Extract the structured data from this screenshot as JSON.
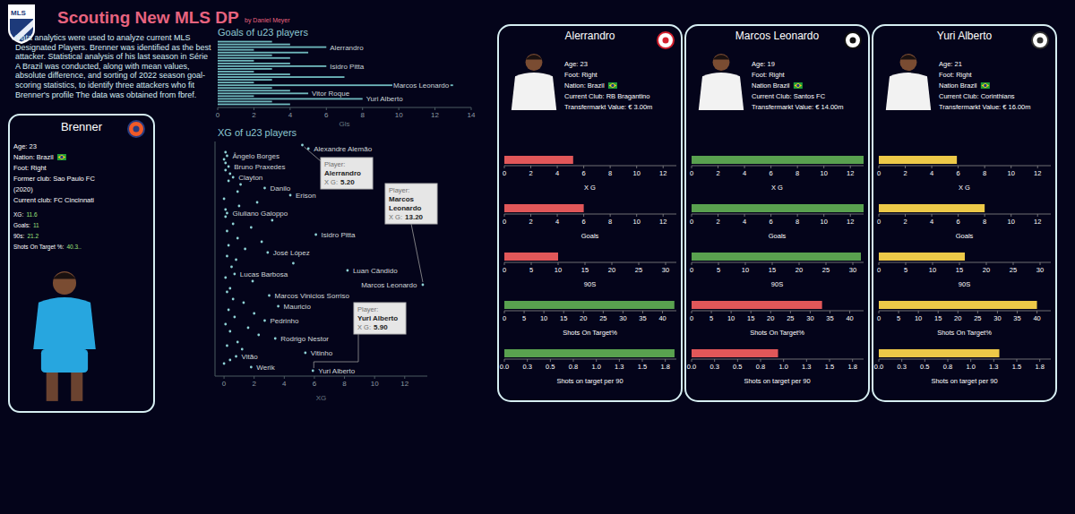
{
  "header": {
    "logo_text": "MLS",
    "title": "Scouting New MLS DP",
    "byline": "by Daniel Meyer",
    "description": "Data analytics were used to analyze current MLS Designated Players. Brenner was identified as the best attacker. Statistical analysis of his last season in Série A Brazil was conducted, along with mean values, absolute difference, and sorting of 2022 season goal-scoring statistics, to identify three attackers who fit Brenner's profile The data was obtained from fbref."
  },
  "brenner": {
    "name": "Brenner",
    "info": [
      "Age: 23",
      "Nation: Brazil",
      "Foot: Right",
      "Former club: Sao Paulo FC",
      "(2020)",
      "Current club: FC Cincinnati"
    ],
    "stats": [
      {
        "label": "XG:",
        "value": "11.6"
      },
      {
        "label": "Goals:",
        "value": "11"
      },
      {
        "label": "90s:",
        "value": "21.2"
      },
      {
        "label": "Shots On Target %:",
        "value": "40.3.."
      }
    ]
  },
  "chart_data": [
    {
      "type": "bar",
      "orientation": "horizontal",
      "title": "Goals of u23 players",
      "x_label": "Gls",
      "categories": [
        null,
        null,
        "Alerrandro",
        null,
        null,
        null,
        null,
        null,
        null,
        "Isidro Pitta",
        null,
        null,
        null,
        null,
        null,
        null,
        "Marcos Leonardo",
        null,
        null,
        "Vitor Roque",
        null,
        "Yuri Alberto",
        null,
        null
      ],
      "values": [
        3,
        4,
        6,
        2,
        5,
        3,
        4,
        2,
        4,
        6,
        3,
        2,
        4,
        7,
        3,
        2,
        13,
        3,
        4,
        5,
        2,
        8,
        3,
        4
      ],
      "color": "#6fb8bc",
      "xlim": [
        0,
        14
      ],
      "xticks": [
        0,
        2,
        4,
        6,
        8,
        10,
        12,
        14
      ],
      "grid": false
    },
    {
      "type": "scatter",
      "title": "XG of u23 players",
      "x_label": "XG",
      "marker": "circle",
      "color": "#8fd3d6",
      "categories": [
        null,
        "Alexandre Alemão",
        null,
        "Ângelo Borges",
        null,
        null,
        "Bruno Praxedes",
        null,
        null,
        "Clayton",
        null,
        null,
        "Danilo",
        null,
        "Erison",
        null,
        null,
        null,
        null,
        "Giuliano Galoppo",
        null,
        null,
        null,
        null,
        null,
        "Isidro Pitta",
        null,
        null,
        null,
        null,
        "José López",
        null,
        null,
        null,
        null,
        "Luan Cândido",
        "Lucas Barbosa",
        null,
        null,
        "Marcos Leonardo",
        null,
        null,
        "Marcos Vinicios Sorriso",
        null,
        null,
        "Mauricio",
        null,
        null,
        null,
        "Pedrinho",
        null,
        null,
        null,
        null,
        "Rodrigo Nestor",
        null,
        null,
        null,
        "Vitinho",
        "Vitão",
        null,
        null,
        "Werik",
        "Yuri Alberto"
      ],
      "values": [
        5.2,
        5.6,
        0.1,
        0.2,
        0.0,
        0.1,
        0.3,
        0.1,
        0.4,
        0.6,
        0.3,
        1.1,
        2.7,
        0.9,
        4.4,
        0.0,
        2.2,
        1.0,
        0.1,
        0.2,
        0.1,
        3.2,
        0.6,
        1.8,
        0.2,
        6.1,
        0.9,
        2.5,
        0.3,
        1.4,
        2.9,
        0.2,
        0.8,
        4.6,
        0.5,
        8.2,
        0.7,
        0.1,
        1.9,
        13.2,
        0.4,
        0.2,
        3.0,
        0.6,
        1.3,
        3.6,
        0.3,
        2.0,
        0.7,
        2.7,
        0.1,
        1.6,
        0.4,
        2.3,
        3.4,
        0.9,
        0.2,
        1.2,
        5.4,
        0.8,
        0.4,
        0.0,
        1.8,
        5.9
      ],
      "xlim": [
        -0.6,
        13.5
      ],
      "xticks": [
        0,
        2,
        4,
        6,
        8,
        10,
        12
      ],
      "grid": false,
      "annotations": [
        {
          "player_label": "Player:",
          "player": "Alerrandro",
          "xg_label": "X G:",
          "xg": "5.20"
        },
        {
          "player_label": "Player:",
          "player": "Marcos Leonardo",
          "xg_label": "X G:",
          "xg": "13.20"
        },
        {
          "player_label": "Player:",
          "player": "Yuri Alberto",
          "xg_label": "X G:",
          "xg": "5.90"
        }
      ]
    }
  ],
  "cards": [
    {
      "name": "Alerrandro",
      "info": [
        "Age: 23",
        "Foot: Right",
        "Nation: Brazil",
        "Current Club: RB Bragantino",
        "Transfermarkt Value: € 3.00m"
      ],
      "metrics": [
        {
          "title": "X G",
          "value": 5.2,
          "color": "#e15759"
        },
        {
          "title": "Goals",
          "value": 6,
          "color": "#e15759"
        },
        {
          "title": "90S",
          "value": 10,
          "color": "#e15759"
        },
        {
          "title": "Shots On Target%",
          "value": 43,
          "color": "#59a14f"
        },
        {
          "title": "Shots on target per 90",
          "value": 1.85,
          "color": "#59a14f"
        }
      ]
    },
    {
      "name": "Marcos Leonardo",
      "info": [
        "Age: 19",
        "Foot: Right",
        "Nation Brazil",
        "Current Club: Santos FC",
        "Transfermarkt Value: € 14.00m"
      ],
      "metrics": [
        {
          "title": "X G",
          "value": 13.2,
          "color": "#59a14f"
        },
        {
          "title": "Goals",
          "value": 13,
          "color": "#59a14f"
        },
        {
          "title": "90S",
          "value": 31.5,
          "color": "#59a14f"
        },
        {
          "title": "Shots On Target%",
          "value": 33,
          "color": "#e15759"
        },
        {
          "title": "Shots on target per 90",
          "value": 0.94,
          "color": "#e15759"
        }
      ]
    },
    {
      "name": "Yuri Alberto",
      "info": [
        "Age: 21",
        "Foot: Right",
        "Nation Brazil",
        "Current Club: Corinthians",
        "Transfermarkt Value: € 16.00m"
      ],
      "metrics": [
        {
          "title": "X G",
          "value": 5.9,
          "color": "#edc948"
        },
        {
          "title": "Goals",
          "value": 8,
          "color": "#edc948"
        },
        {
          "title": "90S",
          "value": 16,
          "color": "#edc948"
        },
        {
          "title": "Shots On Target%",
          "value": 40,
          "color": "#edc948"
        },
        {
          "title": "Shots on target per 90",
          "value": 1.31,
          "color": "#edc948"
        }
      ]
    }
  ],
  "metric_axes": [
    {
      "xlim": [
        0,
        13
      ],
      "xticks": [
        0,
        2,
        4,
        6,
        8,
        10,
        12
      ]
    },
    {
      "xlim": [
        0,
        13
      ],
      "xticks": [
        0,
        2,
        4,
        6,
        8,
        10,
        12
      ]
    },
    {
      "xlim": [
        0,
        32
      ],
      "xticks": [
        0,
        5,
        10,
        15,
        20,
        25,
        30
      ]
    },
    {
      "xlim": [
        0,
        43.5
      ],
      "xticks": [
        0,
        5,
        10,
        15,
        20,
        25,
        30,
        35,
        40
      ]
    },
    {
      "xlim": [
        0,
        1.87
      ],
      "xticks": [
        {
          "value": 0,
          "label": "0.0"
        },
        {
          "value": 0.25,
          "label": "0.3"
        },
        {
          "value": 0.5,
          "label": "0.5"
        },
        {
          "value": 0.75,
          "label": "0.8"
        },
        {
          "value": 1,
          "label": "1.0"
        },
        {
          "value": 1.25,
          "label": "1.3"
        },
        {
          "value": 1.5,
          "label": "1.5"
        },
        {
          "value": 1.75,
          "label": "1.8"
        }
      ]
    }
  ]
}
